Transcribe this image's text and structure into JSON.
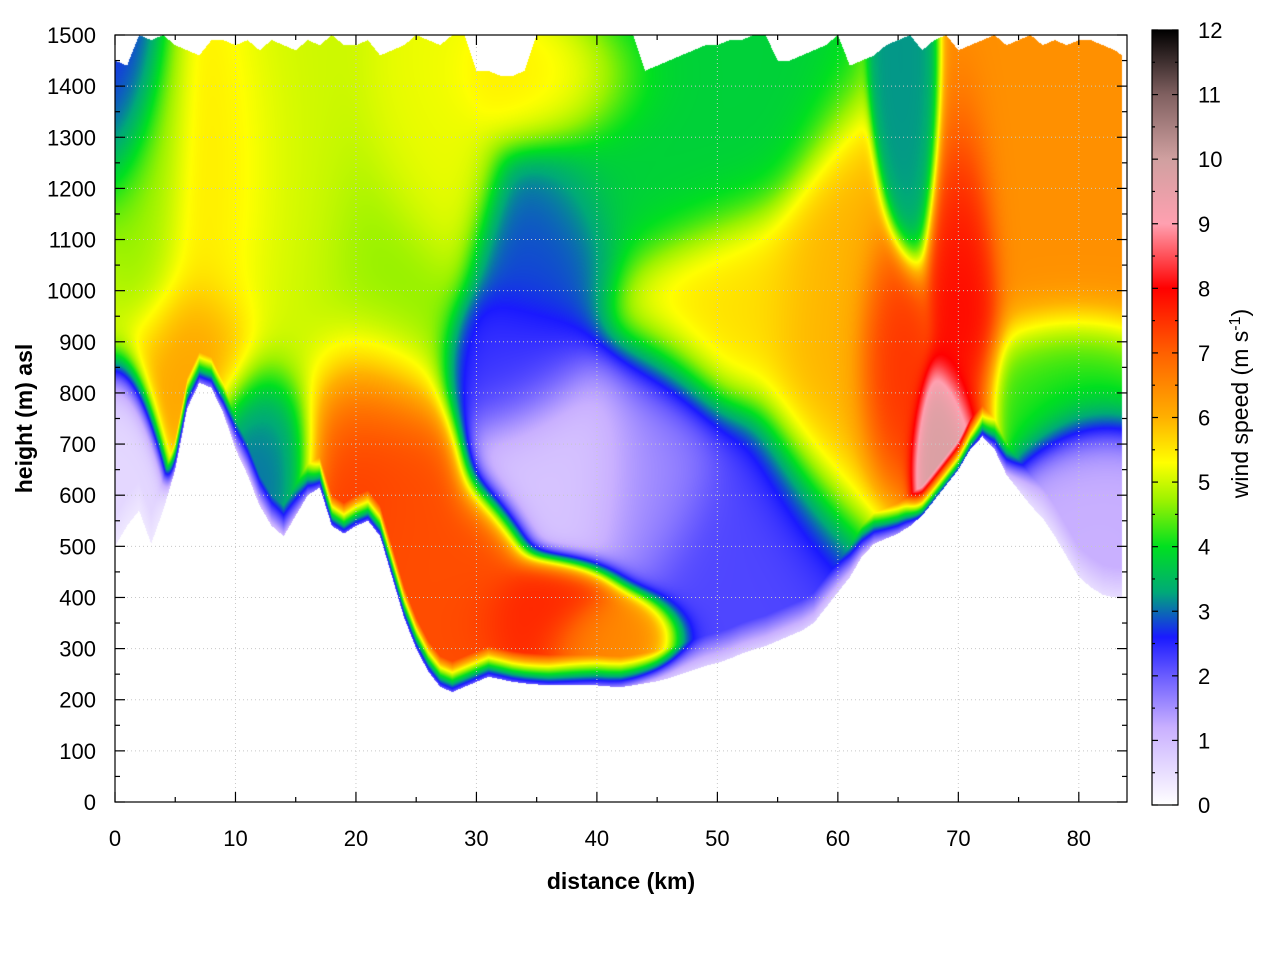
{
  "chart_data": {
    "type": "heatmap",
    "title": "",
    "xlabel": "distance (km)",
    "ylabel": "height (m) asl",
    "xlim": [
      0,
      84
    ],
    "ylim": [
      0,
      1500
    ],
    "x_ticks": [
      0,
      10,
      20,
      30,
      40,
      50,
      60,
      70,
      80
    ],
    "y_ticks": [
      0,
      100,
      200,
      300,
      400,
      500,
      600,
      700,
      800,
      900,
      1000,
      1100,
      1200,
      1300,
      1400,
      1500
    ],
    "grid": true,
    "colorbar": {
      "label_main": "wind speed (m s",
      "label_sup": "-1",
      "label_close": ")",
      "min": 0,
      "max": 12,
      "ticks": [
        0,
        1,
        2,
        3,
        4,
        5,
        6,
        7,
        8,
        9,
        10,
        11,
        12
      ],
      "stops": [
        {
          "v": 0,
          "color": "#ffffff"
        },
        {
          "v": 1.2,
          "color": "#c9b0ff"
        },
        {
          "v": 2.0,
          "color": "#6a5cff"
        },
        {
          "v": 2.6,
          "color": "#1a1aff"
        },
        {
          "v": 3.3,
          "color": "#00aa77"
        },
        {
          "v": 4.0,
          "color": "#00e020"
        },
        {
          "v": 4.7,
          "color": "#99f200"
        },
        {
          "v": 5.3,
          "color": "#ffff00"
        },
        {
          "v": 6.0,
          "color": "#ffb000"
        },
        {
          "v": 7.0,
          "color": "#ff6000"
        },
        {
          "v": 8.0,
          "color": "#ff0000"
        },
        {
          "v": 9.0,
          "color": "#ffa0b0"
        },
        {
          "v": 10.0,
          "color": "#d0a0a0"
        },
        {
          "v": 11.0,
          "color": "#806060"
        },
        {
          "v": 12.0,
          "color": "#000000"
        }
      ]
    },
    "terrain": {
      "x": [
        0,
        1,
        2,
        3,
        4,
        5,
        6,
        7,
        8,
        9,
        10,
        11,
        12,
        13,
        14,
        15,
        16,
        17,
        18,
        19,
        20,
        21,
        22,
        23,
        24,
        25,
        26,
        27,
        28,
        29,
        30,
        31,
        32,
        33,
        34,
        35,
        36,
        37,
        38,
        39,
        40,
        41,
        42,
        43,
        44,
        45,
        46,
        47,
        48,
        49,
        50,
        51,
        52,
        53,
        54,
        55,
        56,
        57,
        58,
        59,
        60,
        61,
        62,
        63,
        64,
        65,
        66,
        67,
        68,
        69,
        70,
        71,
        72,
        73,
        74,
        75,
        76,
        77,
        78,
        79,
        80,
        81,
        82,
        83,
        83.6
      ],
      "h": [
        500,
        540,
        570,
        505,
        570,
        650,
        770,
        820,
        810,
        760,
        690,
        640,
        580,
        540,
        520,
        560,
        600,
        615,
        540,
        525,
        540,
        550,
        520,
        440,
        360,
        300,
        255,
        225,
        215,
        225,
        235,
        245,
        240,
        235,
        232,
        230,
        228,
        228,
        228,
        228,
        228,
        226,
        225,
        228,
        232,
        236,
        242,
        250,
        258,
        266,
        272,
        280,
        290,
        298,
        305,
        315,
        325,
        335,
        350,
        380,
        410,
        440,
        480,
        505,
        515,
        525,
        540,
        560,
        590,
        620,
        650,
        690,
        715,
        690,
        640,
        610,
        580,
        555,
        520,
        480,
        440,
        420,
        405,
        400,
        400
      ],
      "top": [
        1450,
        1440,
        1500,
        1490,
        1500,
        1480,
        1470,
        1460,
        1490,
        1490,
        1480,
        1490,
        1470,
        1490,
        1480,
        1470,
        1490,
        1480,
        1500,
        1480,
        1480,
        1490,
        1460,
        1470,
        1480,
        1500,
        1490,
        1480,
        1500,
        1500,
        1430,
        1430,
        1420,
        1420,
        1430,
        1500,
        1500,
        1500,
        1500,
        1500,
        1500,
        1500,
        1500,
        1500,
        1430,
        1440,
        1450,
        1460,
        1470,
        1480,
        1480,
        1490,
        1490,
        1500,
        1500,
        1450,
        1450,
        1460,
        1470,
        1480,
        1500,
        1440,
        1450,
        1460,
        1480,
        1490,
        1500,
        1470,
        1490,
        1500,
        1470,
        1480,
        1490,
        1500,
        1480,
        1490,
        1500,
        1480,
        1490,
        1480,
        1490,
        1490,
        1480,
        1470,
        1460
      ]
    },
    "wind_field": [
      {
        "x": 1,
        "z": 1400,
        "v": 2.6,
        "sx": 2.0,
        "sz": 150
      },
      {
        "x": 3,
        "z": 1200,
        "v": 4.5,
        "sx": 2.5,
        "sz": 200
      },
      {
        "x": 7,
        "z": 880,
        "v": 6.2,
        "sx": 3.5,
        "sz": 110
      },
      {
        "x": 8,
        "z": 1150,
        "v": 5.5,
        "sx": 5.0,
        "sz": 200
      },
      {
        "x": 1,
        "z": 650,
        "v": 0.6,
        "sx": 1.5,
        "sz": 120
      },
      {
        "x": 12,
        "z": 700,
        "v": 3.0,
        "sx": 3.0,
        "sz": 120
      },
      {
        "x": 15,
        "z": 1100,
        "v": 5.0,
        "sx": 5.0,
        "sz": 250
      },
      {
        "x": 21,
        "z": 700,
        "v": 7.4,
        "sx": 3.5,
        "sz": 170
      },
      {
        "x": 24,
        "z": 550,
        "v": 7.2,
        "sx": 3.0,
        "sz": 140
      },
      {
        "x": 29,
        "z": 420,
        "v": 7.2,
        "sx": 3.0,
        "sz": 110
      },
      {
        "x": 35,
        "z": 370,
        "v": 7.6,
        "sx": 4.0,
        "sz": 60
      },
      {
        "x": 41,
        "z": 330,
        "v": 6.5,
        "sx": 3.5,
        "sz": 45
      },
      {
        "x": 22,
        "z": 1000,
        "v": 4.6,
        "sx": 4.0,
        "sz": 200
      },
      {
        "x": 26,
        "z": 1250,
        "v": 5.2,
        "sx": 4.0,
        "sz": 150
      },
      {
        "x": 36,
        "z": 1080,
        "v": 2.8,
        "sx": 4.0,
        "sz": 150
      },
      {
        "x": 34,
        "z": 860,
        "v": 2.4,
        "sx": 4.0,
        "sz": 100
      },
      {
        "x": 38,
        "z": 700,
        "v": 0.9,
        "sx": 5.0,
        "sz": 130
      },
      {
        "x": 45,
        "z": 700,
        "v": 1.6,
        "sx": 4.0,
        "sz": 150
      },
      {
        "x": 36,
        "z": 1380,
        "v": 5.5,
        "sx": 5.0,
        "sz": 80
      },
      {
        "x": 44,
        "z": 1250,
        "v": 3.8,
        "sx": 7.0,
        "sz": 160
      },
      {
        "x": 50,
        "z": 950,
        "v": 5.6,
        "sx": 6.0,
        "sz": 140
      },
      {
        "x": 53,
        "z": 500,
        "v": 2.2,
        "sx": 5.0,
        "sz": 200
      },
      {
        "x": 59,
        "z": 850,
        "v": 6.0,
        "sx": 4.0,
        "sz": 200
      },
      {
        "x": 64,
        "z": 850,
        "v": 7.6,
        "sx": 2.0,
        "sz": 130
      },
      {
        "x": 66,
        "z": 1350,
        "v": 3.2,
        "sx": 1.3,
        "sz": 160
      },
      {
        "x": 69,
        "z": 700,
        "v": 9.8,
        "sx": 1.6,
        "sz": 90
      },
      {
        "x": 71,
        "z": 1000,
        "v": 8.0,
        "sx": 1.8,
        "sz": 200
      },
      {
        "x": 77,
        "z": 1200,
        "v": 6.4,
        "sx": 5.0,
        "sz": 250
      },
      {
        "x": 80,
        "z": 600,
        "v": 1.2,
        "sx": 3.0,
        "sz": 120
      },
      {
        "x": 78,
        "z": 820,
        "v": 4.0,
        "sx": 4.0,
        "sz": 100
      }
    ]
  }
}
